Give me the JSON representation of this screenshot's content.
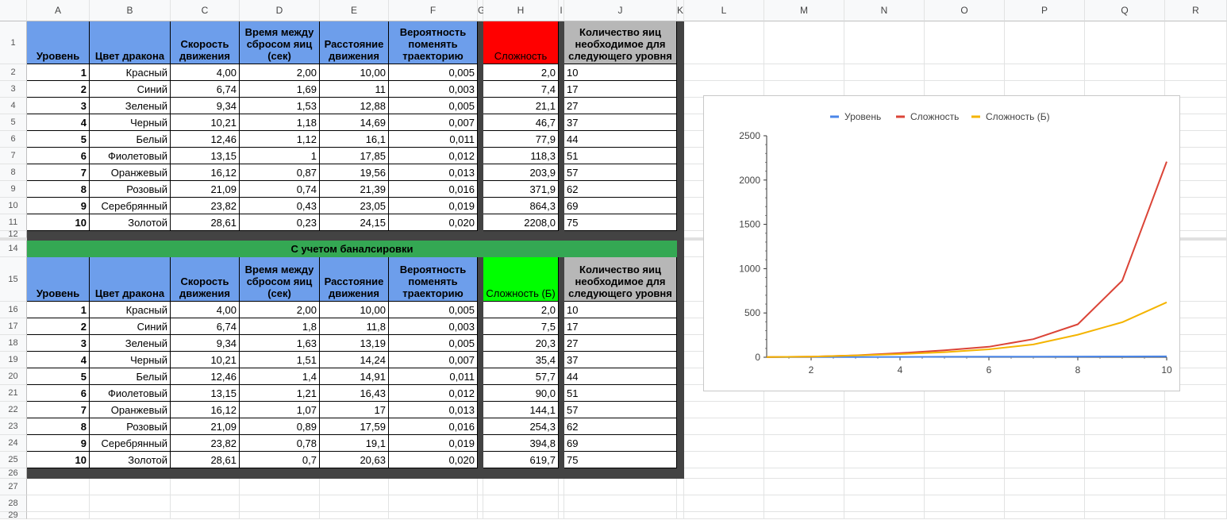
{
  "columns": [
    "A",
    "B",
    "C",
    "D",
    "E",
    "F",
    "G",
    "H",
    "I",
    "J",
    "K",
    "L",
    "M",
    "N",
    "O",
    "P",
    "Q",
    "R"
  ],
  "row_numbers": {
    "top": [
      "1",
      "2",
      "3",
      "4",
      "5",
      "6",
      "7",
      "8",
      "9",
      "10",
      "11",
      "12"
    ],
    "bottom": [
      "14",
      "15",
      "16",
      "17",
      "18",
      "19",
      "20",
      "21",
      "22",
      "23",
      "24",
      "25",
      "26",
      "27",
      "28",
      "29"
    ]
  },
  "table1": {
    "headers": {
      "level": "Уровень",
      "color": "Цвет дракона",
      "speed": "Скорость движения",
      "drop_time": "Время между сбросом яиц (сек)",
      "distance": "Расстояние движения",
      "probability": "Вероятность поменять траекторию",
      "difficulty": "Сложность",
      "eggs": "Количество яиц необходимое для следующего уровня"
    },
    "rows": [
      [
        "1",
        "Красный",
        "4,00",
        "2,00",
        "10,00",
        "0,005",
        "2,0",
        "10"
      ],
      [
        "2",
        "Синий",
        "6,74",
        "1,69",
        "11",
        "0,003",
        "7,4",
        "17"
      ],
      [
        "3",
        "Зеленый",
        "9,34",
        "1,53",
        "12,88",
        "0,005",
        "21,1",
        "27"
      ],
      [
        "4",
        "Черный",
        "10,21",
        "1,18",
        "14,69",
        "0,007",
        "46,7",
        "37"
      ],
      [
        "5",
        "Белый",
        "12,46",
        "1,12",
        "16,1",
        "0,011",
        "77,9",
        "44"
      ],
      [
        "6",
        "Фиолетовый",
        "13,15",
        "1",
        "17,85",
        "0,012",
        "118,3",
        "51"
      ],
      [
        "7",
        "Оранжевый",
        "16,12",
        "0,87",
        "19,56",
        "0,013",
        "203,9",
        "57"
      ],
      [
        "8",
        "Розовый",
        "21,09",
        "0,74",
        "21,39",
        "0,016",
        "371,9",
        "62"
      ],
      [
        "9",
        "Серебрянный",
        "23,82",
        "0,43",
        "23,05",
        "0,019",
        "864,3",
        "69"
      ],
      [
        "10",
        "Золотой",
        "28,61",
        "0,23",
        "24,15",
        "0,020",
        "2208,0",
        "75"
      ]
    ]
  },
  "balanced_title": "С учетом баналсировки",
  "table2": {
    "headers": {
      "level": "Уровень",
      "color": "Цвет дракона",
      "speed": "Скорость движения",
      "drop_time": "Время между сбросом яиц (сек)",
      "distance": "Расстояние движения",
      "probability": "Вероятность поменять траекторию",
      "difficulty": "Сложность (Б)",
      "eggs": "Количество яиц необходимое для следующего уровня"
    },
    "rows": [
      [
        "1",
        "Красный",
        "4,00",
        "2,00",
        "10,00",
        "0,005",
        "2,0",
        "10"
      ],
      [
        "2",
        "Синий",
        "6,74",
        "1,8",
        "11,8",
        "0,003",
        "7,5",
        "17"
      ],
      [
        "3",
        "Зеленый",
        "9,34",
        "1,63",
        "13,19",
        "0,005",
        "20,3",
        "27"
      ],
      [
        "4",
        "Черный",
        "10,21",
        "1,51",
        "14,24",
        "0,007",
        "35,4",
        "37"
      ],
      [
        "5",
        "Белый",
        "12,46",
        "1,4",
        "14,91",
        "0,011",
        "57,7",
        "44"
      ],
      [
        "6",
        "Фиолетовый",
        "13,15",
        "1,21",
        "16,43",
        "0,012",
        "90,0",
        "51"
      ],
      [
        "7",
        "Оранжевый",
        "16,12",
        "1,07",
        "17",
        "0,013",
        "144,1",
        "57"
      ],
      [
        "8",
        "Розовый",
        "21,09",
        "0,89",
        "17,59",
        "0,016",
        "254,3",
        "62"
      ],
      [
        "9",
        "Серебрянный",
        "23,82",
        "0,78",
        "19,1",
        "0,019",
        "394,8",
        "69"
      ],
      [
        "10",
        "Золотой",
        "28,61",
        "0,7",
        "20,63",
        "0,020",
        "619,7",
        "75"
      ]
    ]
  },
  "colors": {
    "header_blue": "#6d9eeb",
    "header_gray": "#b7b7b7",
    "difficulty_red": "#ff0000",
    "difficulty_green": "#00ff00",
    "band_dark": "#434343",
    "title_green": "#34a853"
  },
  "chart_data": {
    "type": "line",
    "legend_position": "top",
    "x": [
      1,
      2,
      3,
      4,
      5,
      6,
      7,
      8,
      9,
      10
    ],
    "x_ticks": [
      "2",
      "4",
      "6",
      "8",
      "10"
    ],
    "y_ticks": [
      "0",
      "500",
      "1000",
      "1500",
      "2000",
      "2500"
    ],
    "ylim": [
      0,
      2500
    ],
    "xlim": [
      1,
      10
    ],
    "series": [
      {
        "name": "Уровень",
        "color": "#4a86e8",
        "values": [
          1,
          2,
          3,
          4,
          5,
          6,
          7,
          8,
          9,
          10
        ]
      },
      {
        "name": "Сложность",
        "color": "#db4437",
        "values": [
          2.0,
          7.4,
          21.1,
          46.7,
          77.9,
          118.3,
          203.9,
          371.9,
          864.3,
          2208.0
        ]
      },
      {
        "name": "Сложность (Б)",
        "color": "#f4b400",
        "values": [
          2.0,
          7.5,
          20.3,
          35.4,
          57.7,
          90.0,
          144.1,
          254.3,
          394.8,
          619.7
        ]
      }
    ]
  }
}
